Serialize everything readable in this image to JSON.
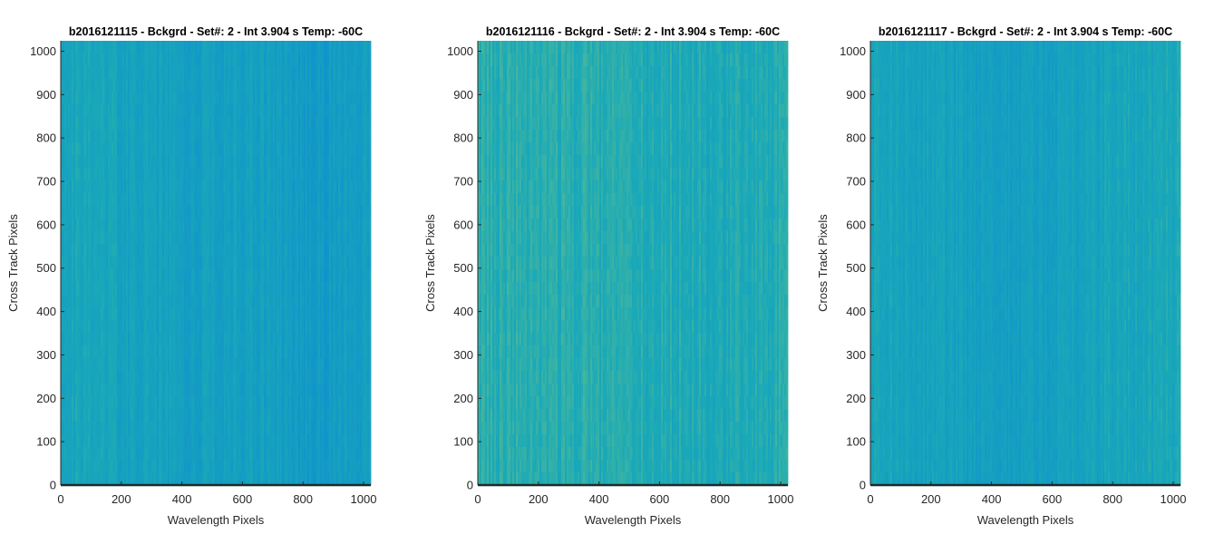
{
  "chart_data": [
    {
      "type": "heatmap",
      "title": "b2016121115 - Bckgrd - Set#: 2 - Int 3.904 s Temp: -60C",
      "xlabel": "Wavelength Pixels",
      "ylabel": "Cross Track Pixels",
      "xlim": [
        0,
        1024
      ],
      "ylim": [
        0,
        1024
      ],
      "x_ticks": [
        0,
        200,
        400,
        600,
        800,
        1000
      ],
      "y_ticks": [
        0,
        100,
        200,
        300,
        400,
        500,
        600,
        700,
        800,
        900,
        1000
      ],
      "grid": false,
      "legend": "none",
      "colors": {
        "low": "#0f8fcf",
        "mid": "#1aa9b8",
        "high": "#7fc67a"
      },
      "mean_level": 0.34,
      "col_profile": [
        0.4,
        0.42,
        0.38,
        0.36,
        0.35,
        0.33,
        0.32,
        0.34,
        0.33,
        0.28,
        0.24,
        0.22,
        0.25,
        0.3
      ]
    },
    {
      "type": "heatmap",
      "title": "b2016121116 - Bckgrd - Set#: 2 - Int 3.904 s Temp: -60C",
      "xlabel": "Wavelength Pixels",
      "ylabel": "Cross Track Pixels",
      "xlim": [
        0,
        1024
      ],
      "ylim": [
        0,
        1024
      ],
      "x_ticks": [
        0,
        200,
        400,
        600,
        800,
        1000
      ],
      "y_ticks": [
        0,
        100,
        200,
        300,
        400,
        500,
        600,
        700,
        800,
        900,
        1000
      ],
      "grid": false,
      "legend": "none",
      "colors": {
        "low": "#0f8fcf",
        "mid": "#1aa9b8",
        "high": "#7fc67a"
      },
      "mean_level": 0.55,
      "col_profile": [
        0.6,
        0.58,
        0.55,
        0.54,
        0.56,
        0.58,
        0.55,
        0.52,
        0.53,
        0.5,
        0.48,
        0.5,
        0.52,
        0.55
      ]
    },
    {
      "type": "heatmap",
      "title": "b2016121117 - Bckgrd - Set#: 2 - Int 3.904 s Temp: -60C",
      "xlabel": "Wavelength Pixels",
      "ylabel": "Cross Track Pixels",
      "xlim": [
        0,
        1024
      ],
      "ylim": [
        0,
        1024
      ],
      "x_ticks": [
        0,
        200,
        400,
        600,
        800,
        1000
      ],
      "y_ticks": [
        0,
        100,
        200,
        300,
        400,
        500,
        600,
        700,
        800,
        900,
        1000
      ],
      "grid": false,
      "legend": "none",
      "colors": {
        "low": "#0f8fcf",
        "mid": "#1aa9b8",
        "high": "#7fc67a"
      },
      "mean_level": 0.36,
      "col_profile": [
        0.42,
        0.4,
        0.38,
        0.36,
        0.34,
        0.32,
        0.3,
        0.32,
        0.34,
        0.36,
        0.4,
        0.42,
        0.44,
        0.46
      ]
    }
  ]
}
